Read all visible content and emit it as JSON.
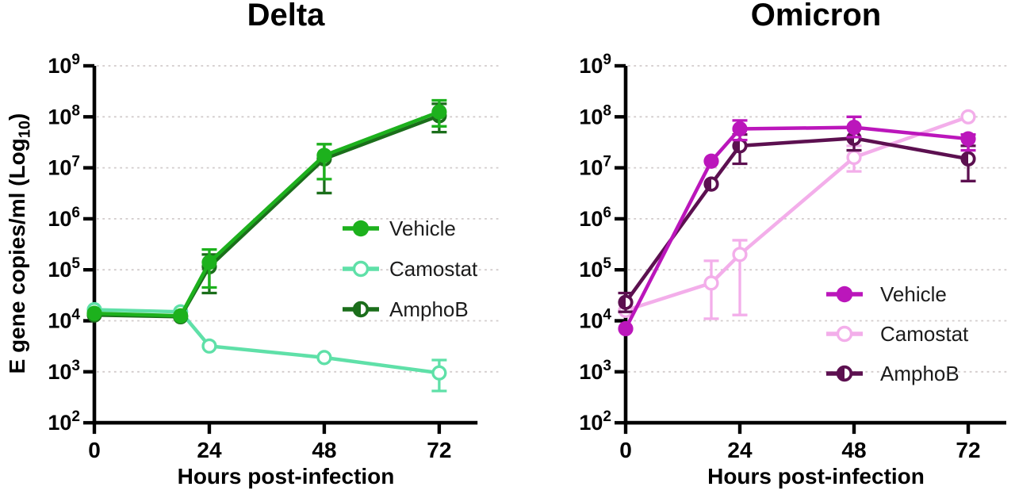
{
  "figure": {
    "background": "#ffffff",
    "y_axis_title": "E gene copies/ml (Log10)",
    "x_axis_title": "Hours post-infection"
  },
  "chart_data": [
    {
      "type": "line",
      "title": "Delta",
      "xlabel": "Hours post-infection",
      "ylabel": "E gene copies/ml (Log10)",
      "ylabel_parts": {
        "main": "E gene copies/ml (Log",
        "sub": "10",
        "close": ")"
      },
      "y_scale": "log10",
      "y_tick_exponents": [
        9,
        8,
        7,
        6,
        5,
        4,
        3,
        2
      ],
      "ylim": [
        100,
        1000000000
      ],
      "x_hours": [
        0,
        18,
        24,
        48,
        72
      ],
      "x_ticks": [
        0,
        24,
        48,
        72
      ],
      "grid": "dashed-horizontal",
      "legend_position": "middle-right",
      "series": [
        {
          "name": "Vehicle",
          "color": "#1db11d",
          "marker": "filled-circle",
          "values": [
            14000,
            12500,
            140000,
            17500000,
            125000000
          ],
          "error_bars": [
            null,
            null,
            [
              45000,
              250000
            ],
            [
              6000000,
              29000000
            ],
            [
              65000000,
              210000000
            ]
          ]
        },
        {
          "name": "Camostat",
          "color": "#5fe0a8",
          "marker": "open-circle",
          "values": [
            16500,
            15000,
            3200,
            1900,
            950
          ],
          "error_bars": [
            null,
            null,
            null,
            null,
            [
              420,
              1700
            ]
          ]
        },
        {
          "name": "AmphoB",
          "color": "#1b6e1b",
          "marker": "half-filled-circle",
          "values": [
            13000,
            12000,
            115000,
            15000000,
            105000000
          ],
          "error_bars": [
            null,
            null,
            [
              35000,
              200000
            ],
            [
              3200000,
              29000000
            ],
            [
              50000000,
              180000000
            ]
          ]
        }
      ]
    },
    {
      "type": "line",
      "title": "Omicron",
      "xlabel": "Hours post-infection",
      "ylabel": "E gene copies/ml (Log10)",
      "y_scale": "log10",
      "y_tick_exponents": [
        9,
        8,
        7,
        6,
        5,
        4,
        3,
        2
      ],
      "ylim": [
        100,
        1000000000
      ],
      "x_hours": [
        0,
        18,
        24,
        48,
        72
      ],
      "x_ticks": [
        0,
        24,
        48,
        72
      ],
      "grid": "dashed-horizontal",
      "legend_position": "lower-right",
      "series": [
        {
          "name": "Vehicle",
          "color": "#bb16bb",
          "marker": "filled-circle",
          "values": [
            7000,
            13500000,
            58000000,
            62000000,
            37000000
          ],
          "error_bars": [
            null,
            null,
            [
              35000000,
              85000000
            ],
            [
              40000000,
              100000000
            ],
            [
              22000000,
              45000000
            ]
          ]
        },
        {
          "name": "Camostat",
          "color": "#f3aeea",
          "marker": "open-circle",
          "values": [
            16000,
            55000,
            200000,
            16000000,
            100000000
          ],
          "error_bars": [
            null,
            [
              11000,
              150000
            ],
            [
              13000,
              380000
            ],
            [
              8500000,
              27000000
            ],
            null
          ]
        },
        {
          "name": "AmphoB",
          "color": "#5c1050",
          "marker": "half-filled-circle",
          "values": [
            23000,
            4800000,
            27000000,
            38000000,
            15000000
          ],
          "error_bars": [
            [
              15000,
              35000
            ],
            null,
            [
              12000000,
              45000000
            ],
            [
              22000000,
              63000000
            ],
            [
              5500000,
              27000000
            ]
          ]
        }
      ]
    }
  ]
}
